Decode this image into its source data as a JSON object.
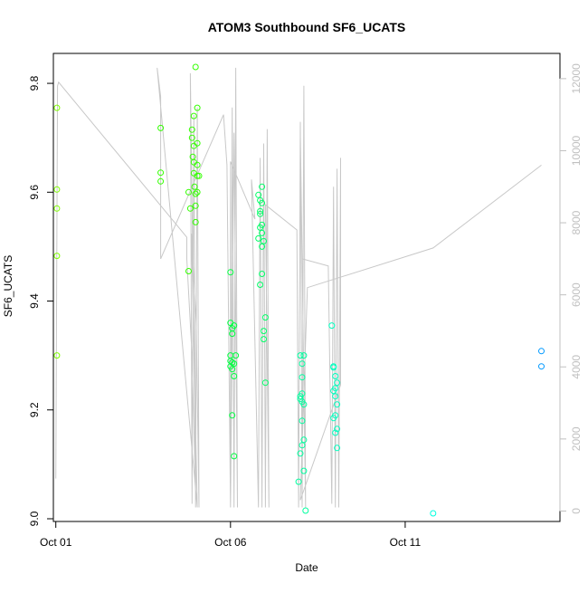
{
  "chart_data": {
    "type": "scatter",
    "title": "ATOM3 Southbound SF6_UCATS",
    "xlabel": "Date",
    "ylabel": "SF6_UCATS",
    "xlim": [
      -0.07,
      14.43
    ],
    "ylim": [
      8.995,
      9.855
    ],
    "y2lim": [
      -290,
      12700
    ],
    "x_ticks": [
      {
        "value": 0,
        "label": "Oct 01"
      },
      {
        "value": 5,
        "label": "Oct 06"
      },
      {
        "value": 10,
        "label": "Oct 11"
      }
    ],
    "y_ticks": [
      {
        "value": 9.0,
        "label": "9.0"
      },
      {
        "value": 9.2,
        "label": "9.2"
      },
      {
        "value": 9.4,
        "label": "9.4"
      },
      {
        "value": 9.6,
        "label": "9.6"
      },
      {
        "value": 9.8,
        "label": "9.8"
      }
    ],
    "y2_ticks": [
      {
        "value": 0,
        "label": "0"
      },
      {
        "value": 2000,
        "label": "2000"
      },
      {
        "value": 4000,
        "label": "4000"
      },
      {
        "value": 6000,
        "label": "6000"
      },
      {
        "value": 8000,
        "label": "8000"
      },
      {
        "value": 10000,
        "label": "10000"
      },
      {
        "value": 12000,
        "label": "12000"
      }
    ],
    "series": [
      {
        "color": "#7fff00",
        "points": [
          [
            0.03,
            9.755
          ],
          [
            0.03,
            9.605
          ],
          [
            0.03,
            9.57
          ],
          [
            0.03,
            9.483
          ],
          [
            0.03,
            9.3
          ]
        ]
      },
      {
        "color": "#33ff00",
        "points": [
          [
            3.0,
            9.718
          ],
          [
            3.0,
            9.636
          ],
          [
            3.0,
            9.62
          ],
          [
            3.8,
            9.455
          ],
          [
            3.8,
            9.6
          ],
          [
            3.85,
            9.57
          ],
          [
            3.9,
            9.715
          ],
          [
            3.9,
            9.7
          ],
          [
            3.95,
            9.74
          ],
          [
            3.95,
            9.685
          ],
          [
            3.95,
            9.655
          ],
          [
            3.95,
            9.635
          ],
          [
            4.0,
            9.83
          ],
          [
            4.0,
            9.597
          ],
          [
            4.0,
            9.575
          ],
          [
            4.0,
            9.545
          ],
          [
            4.05,
            9.755
          ],
          [
            4.05,
            9.69
          ],
          [
            4.05,
            9.65
          ],
          [
            4.05,
            9.63
          ],
          [
            4.05,
            9.6
          ],
          [
            4.1,
            9.63
          ],
          [
            3.92,
            9.665
          ],
          [
            3.97,
            9.61
          ]
        ]
      },
      {
        "color": "#00ff40",
        "points": [
          [
            5.0,
            9.453
          ],
          [
            5.0,
            9.36
          ],
          [
            5.05,
            9.35
          ],
          [
            5.1,
            9.355
          ],
          [
            5.0,
            9.3
          ],
          [
            5.0,
            9.29
          ],
          [
            5.0,
            9.28
          ],
          [
            5.05,
            9.275
          ],
          [
            5.1,
            9.285
          ],
          [
            5.15,
            9.3
          ],
          [
            5.05,
            9.34
          ],
          [
            5.1,
            9.262
          ],
          [
            5.05,
            9.19
          ],
          [
            5.1,
            9.115
          ],
          [
            5.05,
            9.287
          ]
        ]
      },
      {
        "color": "#00ff66",
        "points": [
          [
            5.8,
            9.595
          ],
          [
            5.85,
            9.585
          ],
          [
            5.9,
            9.61
          ],
          [
            5.85,
            9.565
          ],
          [
            5.9,
            9.58
          ],
          [
            5.85,
            9.56
          ],
          [
            5.9,
            9.54
          ],
          [
            5.85,
            9.535
          ],
          [
            5.9,
            9.525
          ],
          [
            5.95,
            9.51
          ],
          [
            5.9,
            9.5
          ],
          [
            5.8,
            9.515
          ],
          [
            5.85,
            9.43
          ],
          [
            5.9,
            9.45
          ],
          [
            6.0,
            9.37
          ],
          [
            5.95,
            9.345
          ],
          [
            5.95,
            9.33
          ],
          [
            6.0,
            9.25
          ]
        ]
      },
      {
        "color": "#00ff9f",
        "points": [
          [
            7.0,
            9.3
          ],
          [
            7.05,
            9.285
          ],
          [
            7.1,
            9.3
          ],
          [
            7.05,
            9.26
          ],
          [
            7.05,
            9.23
          ],
          [
            7.0,
            9.22
          ],
          [
            7.05,
            9.215
          ],
          [
            7.1,
            9.21
          ],
          [
            7.05,
            9.18
          ],
          [
            7.1,
            9.145
          ],
          [
            7.05,
            9.135
          ],
          [
            7.0,
            9.12
          ],
          [
            7.1,
            9.088
          ],
          [
            6.95,
            9.068
          ],
          [
            7.15,
            9.015
          ],
          [
            7.0,
            9.225
          ]
        ]
      },
      {
        "color": "#00ffbf",
        "points": [
          [
            7.9,
            9.355
          ],
          [
            7.95,
            9.28
          ],
          [
            8.0,
            9.262
          ],
          [
            8.05,
            9.25
          ],
          [
            8.0,
            9.24
          ],
          [
            7.95,
            9.235
          ],
          [
            8.0,
            9.225
          ],
          [
            8.05,
            9.21
          ],
          [
            8.0,
            9.19
          ],
          [
            7.95,
            9.185
          ],
          [
            8.05,
            9.165
          ],
          [
            8.0,
            9.158
          ],
          [
            8.05,
            9.13
          ],
          [
            7.95,
            9.278
          ]
        ]
      },
      {
        "color": "#00ffdf",
        "points": [
          [
            10.8,
            9.01
          ]
        ]
      },
      {
        "color": "#0099ff",
        "points": [
          [
            13.9,
            9.308
          ],
          [
            13.9,
            9.28
          ]
        ]
      }
    ],
    "line_series": {
      "color": "#c8c8c8",
      "axis": "y2",
      "points": [
        [
          0.0,
          900
        ],
        [
          0.05,
          11800
        ],
        [
          0.08,
          11900
        ],
        [
          3.75,
          7600
        ],
        [
          3.75,
          7000
        ],
        [
          3.9,
          4300
        ],
        [
          4.0,
          500
        ],
        [
          4.0,
          1000
        ],
        [
          3.85,
          12150
        ],
        [
          3.9,
          200
        ],
        [
          3.95,
          11000
        ],
        [
          4.0,
          100
        ],
        [
          4.05,
          11200
        ],
        [
          4.1,
          100
        ],
        [
          4.02,
          5200
        ],
        [
          3.88,
          7700
        ],
        [
          4.05,
          100
        ],
        [
          2.9,
          12300
        ],
        [
          3.0,
          11500
        ],
        [
          3.0,
          7000
        ],
        [
          4.8,
          11000
        ],
        [
          4.9,
          9600
        ],
        [
          5.0,
          100
        ],
        [
          5.05,
          11200
        ],
        [
          5.1,
          100
        ],
        [
          5.15,
          12300
        ],
        [
          5.2,
          100
        ],
        [
          5.1,
          10500
        ],
        [
          5.0,
          100
        ],
        [
          5.0,
          9700
        ],
        [
          5.7,
          8100
        ],
        [
          5.6,
          9200
        ],
        [
          5.8,
          100
        ],
        [
          5.85,
          9800
        ],
        [
          5.9,
          100
        ],
        [
          5.95,
          10200
        ],
        [
          6.0,
          100
        ],
        [
          6.05,
          10600
        ],
        [
          6.1,
          100
        ],
        [
          6.0,
          8500
        ],
        [
          6.9,
          7800
        ],
        [
          6.95,
          100
        ],
        [
          7.0,
          10800
        ],
        [
          7.05,
          100
        ],
        [
          7.1,
          11800
        ],
        [
          7.15,
          100
        ],
        [
          7.0,
          10500
        ],
        [
          7.05,
          7000
        ],
        [
          7.8,
          6800
        ],
        [
          7.9,
          200
        ],
        [
          7.95,
          9000
        ],
        [
          8.0,
          100
        ],
        [
          8.05,
          9500
        ],
        [
          8.1,
          100
        ],
        [
          8.15,
          9800
        ],
        [
          8.15,
          3500
        ],
        [
          7.0,
          300
        ],
        [
          7.2,
          6200
        ],
        [
          10.8,
          7300
        ],
        [
          13.9,
          9600
        ]
      ]
    }
  }
}
